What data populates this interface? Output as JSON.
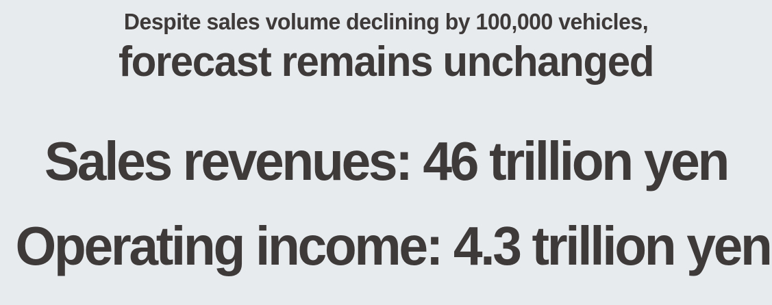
{
  "slide": {
    "subtitle": "Despite sales volume declining by 100,000 vehicles,",
    "title": "forecast remains unchanged",
    "metrics": [
      {
        "label": "Sales revenues",
        "value": "46 trillion yen",
        "text": "Sales revenues: 46 trillion yen"
      },
      {
        "label": "Operating income",
        "value": "4.3 trillion yen",
        "text": "Operating income: 4.3 trillion yen"
      }
    ],
    "colors": {
      "background": "#e8ebee",
      "text": "#3f3a3a"
    }
  }
}
